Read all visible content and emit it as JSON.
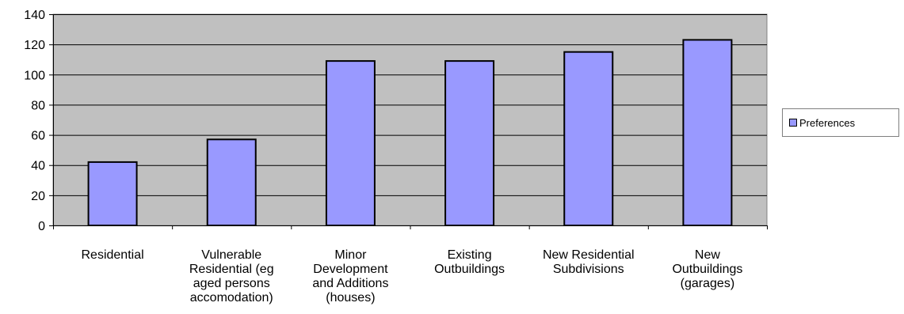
{
  "chart_data": {
    "type": "bar",
    "categories": [
      [
        "Residential"
      ],
      [
        "Vulnerable",
        "Residential (eg",
        "aged persons",
        "accomodation)"
      ],
      [
        "Minor",
        "Development",
        "and Additions",
        "(houses)"
      ],
      [
        "Existing",
        "Outbuildings"
      ],
      [
        "New Residential",
        "Subdivisions"
      ],
      [
        "New",
        "Outbuildings",
        "(garages)"
      ]
    ],
    "series": [
      {
        "name": "Preferences",
        "values": [
          42,
          57,
          109,
          109,
          115,
          123
        ]
      }
    ],
    "ylim": [
      0,
      140
    ],
    "yticks": [
      0,
      20,
      40,
      60,
      80,
      100,
      120,
      140
    ],
    "grid": true,
    "legend_position": "right",
    "colors": {
      "plot_background": "#c0c0c0",
      "bar_fill": "#9999ff",
      "bar_stroke": "#000000",
      "gridline": "#000000"
    }
  }
}
